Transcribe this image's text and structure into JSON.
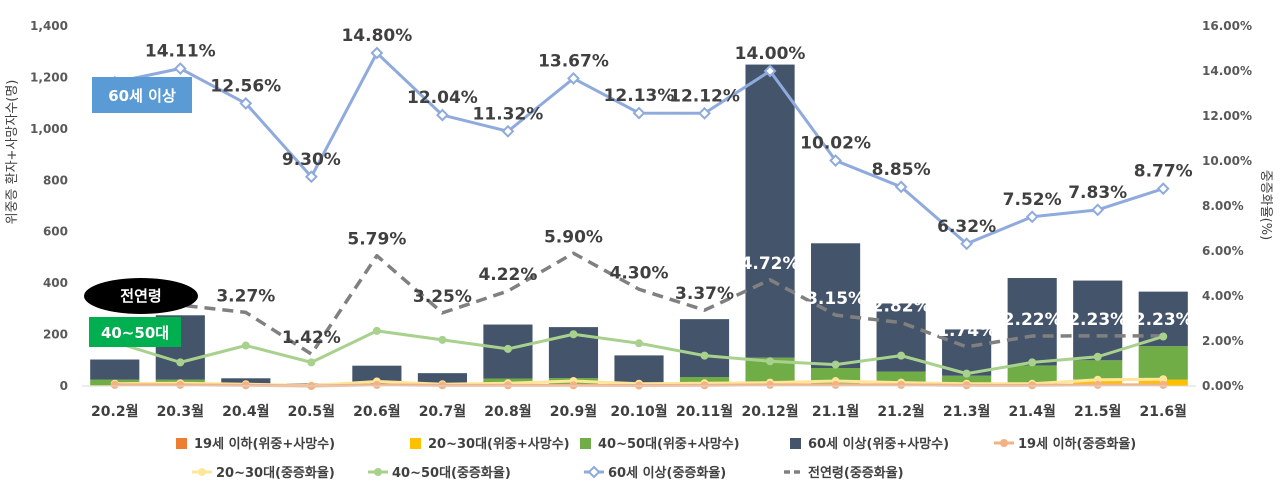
{
  "chart_data": {
    "type": "bar",
    "categories": [
      "20.2월",
      "20.3월",
      "20.4월",
      "20.5월",
      "20.6월",
      "20.7월",
      "20.8월",
      "20.9월",
      "20.10월",
      "20.11월",
      "20.12월",
      "21.1월",
      "21.2월",
      "21.3월",
      "21.4월",
      "21.5월",
      "21.6월"
    ],
    "ylabel": "위중증 환자+사망자수(명)",
    "y2label": "중증화율(%)",
    "ylim": [
      0,
      1400
    ],
    "y2lim": [
      0,
      16
    ],
    "y_ticks": [
      "0",
      "200",
      "400",
      "600",
      "800",
      "1,000",
      "1,200",
      "1,400"
    ],
    "y2_ticks": [
      "0.00%",
      "2.00%",
      "4.00%",
      "6.00%",
      "8.00%",
      "10.00%",
      "12.00%",
      "14.00%",
      "16.00%"
    ],
    "bar_series": [
      {
        "name": "19세 이하(위중+사망수)",
        "color": "#ED7D31",
        "values": [
          0,
          0,
          0,
          0,
          0,
          0,
          0,
          0,
          0,
          0,
          0,
          0,
          0,
          0,
          0,
          0,
          0
        ]
      },
      {
        "name": "20~30대(위중+사망수)",
        "color": "#FFC000",
        "values": [
          3,
          5,
          1,
          0,
          2,
          1,
          4,
          3,
          1,
          3,
          10,
          10,
          6,
          5,
          5,
          25,
          25
        ]
      },
      {
        "name": "40~50대(위중+사망수)",
        "color": "#70AD47",
        "values": [
          22,
          20,
          5,
          2,
          3,
          2,
          25,
          28,
          8,
          32,
          100,
          60,
          50,
          35,
          75,
          75,
          130
        ]
      },
      {
        "name": "60세 이상(위중+사망수)",
        "color": "#44546A",
        "values": [
          78,
          250,
          24,
          8,
          74,
          47,
          210,
          198,
          110,
          225,
          1140,
          485,
          265,
          180,
          340,
          310,
          212
        ]
      }
    ],
    "line_series": [
      {
        "name": "19세 이하(중증화율)",
        "color": "#F4B183",
        "style": "solid",
        "values": [
          0.05,
          0.05,
          0.03,
          0.0,
          0.05,
          0.03,
          0.03,
          0.03,
          0.02,
          0.03,
          0.05,
          0.05,
          0.05,
          0.03,
          0.03,
          0.05,
          0.05
        ]
      },
      {
        "name": "20~30대(중증화율)",
        "color": "#FFE699",
        "style": "solid",
        "values": [
          0.1,
          0.12,
          0.08,
          0.02,
          0.2,
          0.08,
          0.12,
          0.22,
          0.1,
          0.12,
          0.15,
          0.22,
          0.15,
          0.1,
          0.1,
          0.28,
          0.3
        ]
      },
      {
        "name": "40~50대(중증화율)",
        "color": "#A9D18E",
        "style": "solid",
        "values": [
          1.95,
          1.05,
          1.8,
          1.05,
          2.45,
          2.05,
          1.65,
          2.3,
          1.9,
          1.35,
          1.1,
          0.95,
          1.35,
          0.55,
          1.05,
          1.3,
          2.2
        ]
      },
      {
        "name": "60세 이상(중증화율)",
        "color": "#8FAADC",
        "style": "solid",
        "marker": "diamond",
        "values": [
          13.5,
          14.11,
          12.56,
          9.3,
          14.8,
          12.04,
          11.32,
          13.67,
          12.13,
          12.12,
          14.0,
          10.02,
          8.85,
          6.32,
          7.52,
          7.83,
          8.77
        ]
      },
      {
        "name": "전연령(중증화율)",
        "color": "#808080",
        "style": "dashed",
        "values": [
          3.8,
          3.6,
          3.27,
          1.42,
          5.79,
          3.25,
          4.22,
          5.9,
          4.3,
          3.37,
          4.72,
          3.15,
          2.82,
          1.74,
          2.22,
          2.23,
          2.23
        ]
      }
    ],
    "labels_60": [
      "",
      "14.11%",
      "12.56%",
      "9.30%",
      "14.80%",
      "12.04%",
      "11.32%",
      "13.67%",
      "12.13%",
      "12.12%",
      "14.00%",
      "10.02%",
      "8.85%",
      "6.32%",
      "7.52%",
      "7.83%",
      "8.77%"
    ],
    "labels_all": [
      "",
      "",
      "3.27%",
      "1.42%",
      "5.79%",
      "3.25%",
      "4.22%",
      "5.90%",
      "4.30%",
      "3.37%",
      "4.72%",
      "3.15%",
      "2.82%",
      "1.74%",
      "2.22%",
      "2.23%",
      "2.23%"
    ],
    "legend_rows": [
      [
        "19세 이하(위중+사망수)",
        "20~30대(위중+사망수)",
        "40~50대(위중+사망수)",
        "60세 이상(위중+사망수)",
        "19세 이하(중증화율)"
      ],
      [
        "20~30대(중증화율)",
        "40~50대(중증화율)",
        "60세 이상(중증화율)",
        "전연령(중증화율)"
      ]
    ]
  },
  "badges": {
    "age60": "60세 이상",
    "all": "전연령",
    "age4050": "40~50대"
  }
}
